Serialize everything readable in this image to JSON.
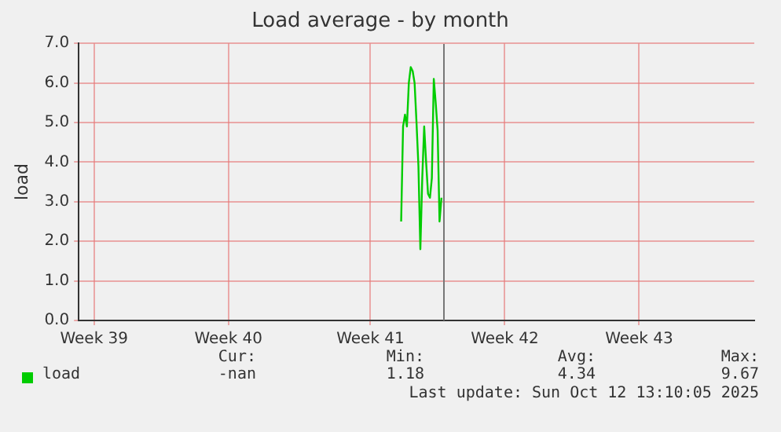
{
  "chart_data": {
    "type": "line",
    "title": "Load average - by month",
    "ylabel": "load",
    "categories": [
      null,
      null,
      null,
      null,
      null,
      null,
      null,
      null,
      "Week 39",
      null,
      null,
      null,
      null,
      null,
      null,
      null,
      null,
      null,
      null,
      null,
      null,
      null,
      null,
      null,
      null,
      null,
      null,
      null,
      null,
      null,
      null,
      null,
      null,
      null,
      null,
      null,
      null,
      null,
      null,
      null,
      null,
      null,
      null,
      null,
      null,
      null,
      null,
      null,
      null,
      null,
      null,
      null,
      null,
      null,
      null,
      null,
      null,
      null,
      null,
      null,
      null,
      null,
      null,
      null,
      null,
      null,
      null,
      null,
      null,
      null,
      null,
      null,
      null,
      null,
      null,
      null,
      null,
      null,
      "Week 40",
      null,
      null,
      null,
      null,
      null,
      null,
      null,
      null,
      null,
      null,
      null,
      null,
      null,
      null,
      null,
      null,
      null,
      null,
      null,
      null,
      null,
      null,
      null,
      null,
      null,
      null,
      null,
      null,
      null,
      null,
      null,
      null,
      null,
      null,
      null,
      null,
      null,
      null,
      null,
      null,
      null,
      null,
      null,
      null,
      null,
      null,
      null,
      null,
      null,
      null,
      null,
      null,
      null,
      null,
      null,
      null,
      null,
      null,
      null,
      null,
      null,
      null,
      null,
      null,
      null,
      null,
      null,
      null,
      null,
      null,
      null,
      null,
      null,
      "Week 41",
      null,
      null,
      null,
      null,
      null,
      null,
      null,
      null,
      null,
      null,
      null,
      null,
      null,
      null,
      null,
      null,
      null,
      null,
      null,
      null,
      null,
      null,
      null,
      null,
      null,
      null,
      null,
      null,
      null,
      null,
      null,
      null,
      null,
      null,
      null,
      null,
      null,
      null,
      null,
      null,
      null,
      null,
      null,
      null,
      null,
      null,
      null,
      null,
      null,
      null,
      null,
      null,
      null,
      null,
      null,
      null,
      null,
      null,
      null,
      null,
      null,
      null,
      null,
      null,
      null,
      null,
      null,
      null,
      null,
      "Week 42",
      null,
      null,
      null,
      null,
      null,
      null,
      null,
      null,
      null,
      null,
      null,
      null,
      null,
      null,
      null,
      null,
      null,
      null,
      null,
      null,
      null,
      null,
      null,
      null,
      null,
      null,
      null,
      null,
      null,
      null,
      null,
      null,
      null,
      null,
      null,
      null,
      null,
      null,
      null,
      null,
      null,
      null,
      null,
      null,
      null,
      null,
      null,
      null,
      null,
      null,
      null,
      null,
      null,
      null,
      null,
      null,
      null,
      null,
      null,
      null,
      null,
      null,
      null,
      null,
      null,
      null,
      null,
      null,
      null,
      "Week 43",
      null,
      null,
      null,
      null,
      null,
      null,
      null,
      null,
      null,
      null,
      null,
      null,
      null,
      null,
      null,
      null,
      null,
      null,
      null,
      null,
      null,
      null,
      null,
      null,
      null,
      null,
      null,
      null,
      null,
      null,
      null,
      null,
      null,
      null,
      null,
      null,
      null,
      null,
      null,
      null,
      null,
      null,
      null,
      null,
      null,
      null,
      null,
      null,
      null,
      null,
      null,
      null,
      null,
      null,
      null,
      null,
      null,
      null,
      null,
      null
    ],
    "series": [
      {
        "name": "load",
        "color": "#00cc00",
        "values": [
          null,
          null,
          null,
          null,
          null,
          null,
          null,
          null,
          null,
          null,
          null,
          null,
          null,
          null,
          null,
          null,
          null,
          null,
          null,
          null,
          null,
          null,
          null,
          null,
          null,
          null,
          null,
          null,
          null,
          null,
          null,
          null,
          null,
          null,
          null,
          null,
          null,
          null,
          null,
          null,
          null,
          null,
          null,
          null,
          null,
          null,
          null,
          null,
          null,
          null,
          null,
          null,
          null,
          null,
          null,
          null,
          null,
          null,
          null,
          null,
          null,
          null,
          null,
          null,
          null,
          null,
          null,
          null,
          null,
          null,
          null,
          null,
          null,
          null,
          null,
          null,
          null,
          null,
          null,
          null,
          null,
          null,
          null,
          null,
          null,
          null,
          null,
          null,
          null,
          null,
          null,
          null,
          null,
          null,
          null,
          null,
          null,
          null,
          null,
          null,
          null,
          null,
          null,
          null,
          null,
          null,
          null,
          null,
          null,
          null,
          null,
          null,
          null,
          null,
          null,
          null,
          null,
          null,
          null,
          null,
          null,
          null,
          null,
          null,
          null,
          null,
          null,
          null,
          null,
          null,
          null,
          null,
          null,
          null,
          null,
          null,
          null,
          null,
          null,
          null,
          null,
          null,
          null,
          null,
          null,
          null,
          null,
          null,
          null,
          null,
          null,
          null,
          null,
          null,
          null,
          null,
          null,
          null,
          null,
          null,
          null,
          null,
          null,
          null,
          null,
          null,
          null,
          null,
          2.5,
          4.9,
          5.2,
          4.9,
          6.0,
          6.4,
          6.3,
          6.0,
          5.0,
          3.9,
          1.8,
          3.6,
          4.9,
          4.0,
          3.2,
          3.1,
          3.6,
          6.1,
          5.5,
          4.8,
          2.5,
          3.1,
          null,
          null,
          null,
          null,
          null,
          null,
          null,
          null,
          null,
          null,
          null,
          null,
          null,
          null,
          null,
          null,
          null,
          null,
          null,
          null,
          null,
          null,
          null,
          null,
          null,
          null,
          null,
          null,
          null,
          null,
          null,
          null,
          null,
          null,
          null,
          null,
          null,
          null,
          null,
          null,
          null,
          null,
          null,
          null,
          null,
          null,
          null,
          null,
          null,
          null,
          null,
          null,
          null,
          null,
          null,
          null,
          null,
          null,
          null,
          null,
          null,
          null,
          null,
          null,
          null,
          null,
          null,
          null,
          null,
          null,
          null,
          null,
          null,
          null,
          null,
          null,
          null,
          null,
          null,
          null,
          null,
          null,
          null,
          null,
          null,
          null,
          null,
          null,
          null,
          null,
          null,
          null,
          null,
          null,
          null,
          null,
          null,
          null,
          null,
          null,
          null,
          null,
          null,
          null,
          null,
          null,
          null,
          null,
          null,
          null,
          null,
          null,
          null,
          null,
          null,
          null,
          null,
          null,
          null,
          null,
          null,
          null,
          null,
          null,
          null,
          null,
          null,
          null,
          null,
          null,
          null,
          null,
          null,
          null,
          null,
          null,
          null,
          null,
          null,
          null,
          null,
          null,
          null,
          null,
          null,
          null,
          null,
          null,
          null,
          null,
          null,
          null,
          null,
          null,
          null,
          null,
          null,
          null,
          null,
          null,
          null,
          null,
          null
        ]
      }
    ],
    "ylim": [
      0,
      7
    ],
    "yticks": [
      {
        "value": 0,
        "label": "0.0"
      },
      {
        "value": 1,
        "label": "1.0"
      },
      {
        "value": 2,
        "label": "2.0"
      },
      {
        "value": 3,
        "label": "3.0"
      },
      {
        "value": 4,
        "label": "4.0"
      },
      {
        "value": 5,
        "label": "5.0"
      },
      {
        "value": 6,
        "label": "6.0"
      },
      {
        "value": 7,
        "label": "7.0"
      }
    ],
    "grid": true,
    "legend": "bottom left",
    "marker": "none",
    "line_style": "solid",
    "annotations": [
      "Cur:",
      "Min:",
      "Avg:",
      "Max:",
      "-nan",
      "1.18",
      "4.34",
      "9.67",
      "Last update: Sun Oct 12 13:10:05 2025"
    ]
  }
}
